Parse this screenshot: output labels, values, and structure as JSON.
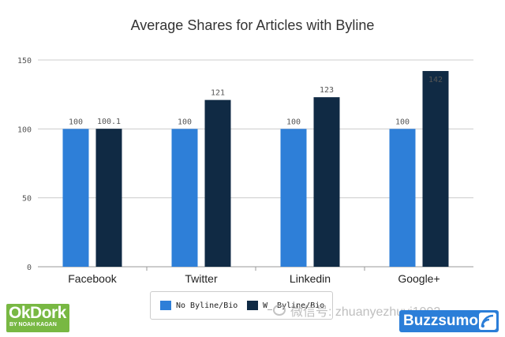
{
  "chart_data": {
    "type": "bar",
    "title": "Average Shares for Articles with Byline",
    "categories": [
      "Facebook",
      "Twitter",
      "Linkedin",
      "Google+"
    ],
    "series": [
      {
        "name": "No Byline/Bio",
        "color": "#2e7fd8",
        "values": [
          100,
          100,
          100,
          100
        ]
      },
      {
        "name": "W_ Byline/Bio",
        "color": "#102a44",
        "values": [
          100.1,
          121,
          123,
          142
        ]
      }
    ],
    "data_labels": [
      [
        "100",
        "100",
        "100",
        "100"
      ],
      [
        "100.1",
        "121",
        "123",
        "142"
      ]
    ],
    "ylim": [
      0,
      150
    ],
    "yticks": [
      0,
      50,
      100,
      150
    ],
    "ytick_labels": [
      "0",
      "50",
      "100",
      "150"
    ],
    "xlabel": "",
    "ylabel": "",
    "grid": true,
    "legend_position": "bottom"
  },
  "logos": {
    "okdork": {
      "name": "OkDork",
      "tagline": "BY NOAH KAGAN",
      "color": "#78b843"
    },
    "buzzsumo": {
      "name": "Buzzsumo",
      "color": "#2b7ed8"
    }
  },
  "watermark": {
    "text": "微信号: zhuanyezhuyi1992"
  },
  "icons": [
    "wechat-icon",
    "wifi-signal-icon"
  ]
}
